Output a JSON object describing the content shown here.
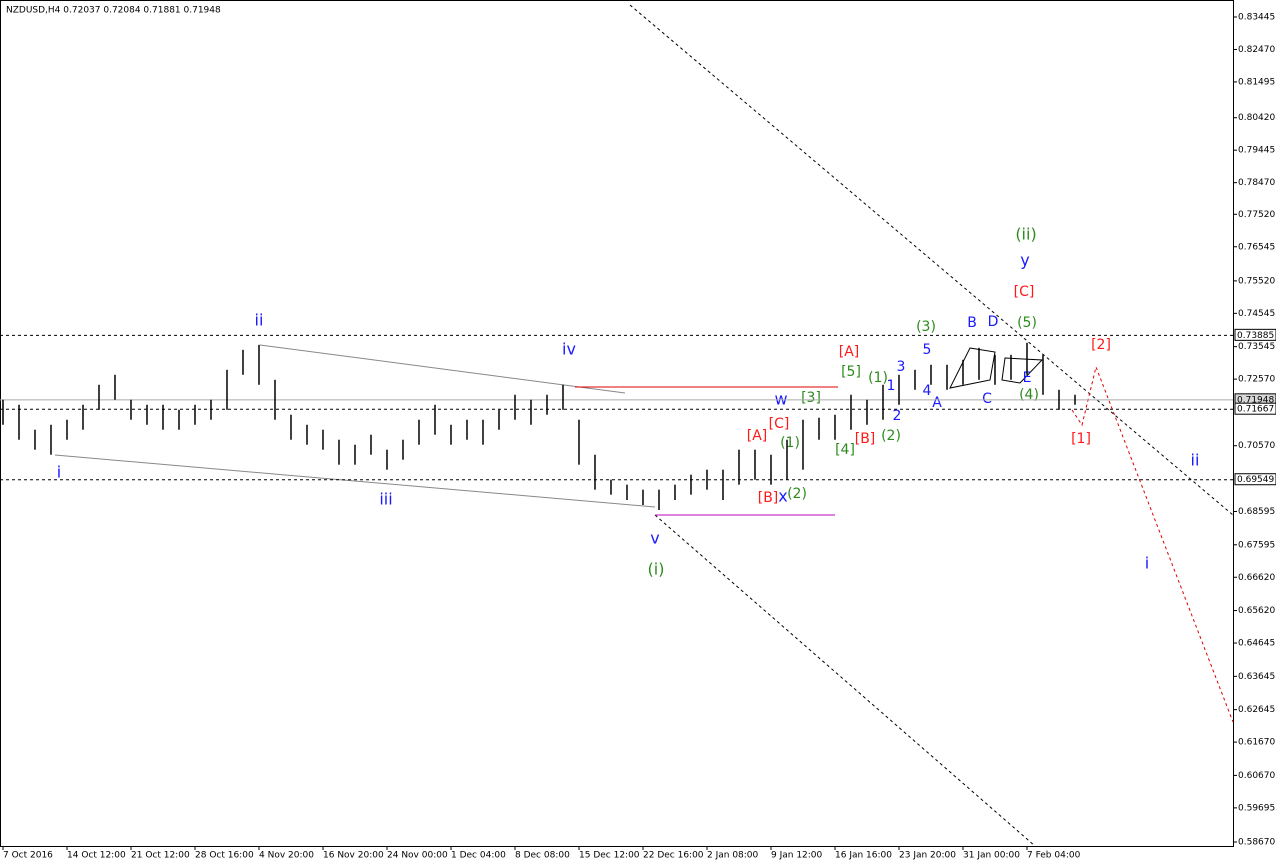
{
  "chart_data": {
    "type": "hl_bar",
    "title": "NZDUSD,H4  0.72037 0.72084 0.71881 0.71948",
    "color": "#000000",
    "ylim": [
      0.5855,
      0.83955
    ],
    "yticks": [
      {
        "value": 0.83445,
        "label": "0.83445"
      },
      {
        "value": 0.8247,
        "label": "0.82470"
      },
      {
        "value": 0.81495,
        "label": "0.81495"
      },
      {
        "value": 0.8042,
        "label": "0.80420"
      },
      {
        "value": 0.79445,
        "label": "0.79445"
      },
      {
        "value": 0.7847,
        "label": "0.78470"
      },
      {
        "value": 0.7752,
        "label": "0.77520"
      },
      {
        "value": 0.76545,
        "label": "0.76545"
      },
      {
        "value": 0.7552,
        "label": "0.75520"
      },
      {
        "value": 0.74545,
        "label": "0.74545"
      },
      {
        "value": 0.73545,
        "label": "0.73545"
      },
      {
        "value": 0.7257,
        "label": "0.72570"
      },
      {
        "value": 0.7057,
        "label": "0.70570"
      },
      {
        "value": 0.68595,
        "label": "0.68595"
      },
      {
        "value": 0.67595,
        "label": "0.67595"
      },
      {
        "value": 0.6662,
        "label": "0.66620"
      },
      {
        "value": 0.6562,
        "label": "0.65620"
      },
      {
        "value": 0.64645,
        "label": "0.64645"
      },
      {
        "value": 0.63645,
        "label": "0.63645"
      },
      {
        "value": 0.62645,
        "label": "0.62645"
      },
      {
        "value": 0.6167,
        "label": "0.61670"
      },
      {
        "value": 0.6067,
        "label": "0.60670"
      },
      {
        "value": 0.59695,
        "label": "0.59695"
      },
      {
        "value": 0.5867,
        "label": "0.58670"
      }
    ],
    "levels": [
      {
        "value": 0.73885,
        "label": "0.73885",
        "dashed": true
      },
      {
        "value": 0.71948,
        "label": "0.71948",
        "dashed": false
      },
      {
        "value": 0.71667,
        "label": "0.71667",
        "dashed": true
      },
      {
        "value": 0.69549,
        "label": "0.69549",
        "dashed": true
      }
    ],
    "categories": [
      "7 Oct 2016",
      null,
      null,
      null,
      "14 Oct 12:00",
      null,
      null,
      null,
      "21 Oct 12:00",
      null,
      null,
      null,
      "28 Oct 16:00",
      null,
      null,
      null,
      "4 Nov 20:00",
      null,
      null,
      null,
      "16 Nov 20:00",
      null,
      null,
      null,
      "24 Nov 00:00",
      null,
      null,
      null,
      "1 Dec 04:00",
      null,
      null,
      null,
      "8 Dec 08:00",
      null,
      null,
      null,
      "15 Dec 12:00",
      null,
      null,
      null,
      "22 Dec 16:00",
      null,
      null,
      null,
      "2 Jan 08:00",
      null,
      null,
      null,
      "9 Jan 12:00",
      null,
      null,
      null,
      "16 Jan 16:00",
      null,
      null,
      null,
      "23 Jan 20:00",
      null,
      null,
      null,
      "31 Jan 00:00",
      null,
      null,
      null,
      "7 Feb 04:00",
      null,
      null,
      null
    ],
    "high": [
      0.7195,
      0.718,
      0.7105,
      0.712,
      0.7135,
      0.718,
      0.724,
      0.727,
      0.7195,
      0.718,
      0.718,
      0.7165,
      0.718,
      0.7195,
      0.7285,
      0.7345,
      0.736,
      0.7255,
      0.715,
      0.712,
      0.7105,
      0.7075,
      0.706,
      0.709,
      0.7045,
      0.7075,
      0.7135,
      0.718,
      0.712,
      0.7135,
      0.7135,
      0.7165,
      0.721,
      0.7195,
      0.721,
      0.724,
      0.7135,
      0.703,
      0.6955,
      0.694,
      0.6925,
      0.6925,
      0.694,
      0.697,
      0.6985,
      0.6985,
      0.7045,
      0.7045,
      0.703,
      0.7075,
      0.7135,
      0.7141,
      0.715,
      0.721,
      0.7195,
      0.724,
      0.727,
      0.7285,
      0.73,
      0.73,
      0.7315,
      0.7351,
      0.733,
      0.733,
      0.7366,
      0.733,
      0.7225,
      0.721
    ],
    "low": [
      0.712,
      0.7075,
      0.7045,
      0.703,
      0.7075,
      0.7105,
      0.7165,
      0.7195,
      0.7135,
      0.712,
      0.7105,
      0.7105,
      0.712,
      0.7135,
      0.7165,
      0.727,
      0.724,
      0.7135,
      0.7075,
      0.706,
      0.7045,
      0.7,
      0.7,
      0.703,
      0.6985,
      0.7015,
      0.706,
      0.709,
      0.706,
      0.7075,
      0.706,
      0.7105,
      0.7135,
      0.712,
      0.715,
      0.7165,
      0.7,
      0.6925,
      0.691,
      0.6894,
      0.6879,
      0.6864,
      0.6894,
      0.691,
      0.6925,
      0.6894,
      0.694,
      0.6955,
      0.694,
      0.6955,
      0.6985,
      0.7075,
      0.7075,
      0.7105,
      0.712,
      0.7135,
      0.718,
      0.7225,
      0.724,
      0.7225,
      0.724,
      0.7255,
      0.724,
      0.7255,
      0.727,
      0.721,
      0.7165,
      0.718
    ],
    "annotations": [
      "i",
      "ii",
      "iii",
      "iv",
      "v",
      "w",
      "x",
      "y",
      "1",
      "2",
      "3",
      "4",
      "5",
      "A",
      "B",
      "C",
      "D",
      "E",
      "ii",
      "i",
      "(i)",
      "(ii)",
      "(1)",
      "(2)",
      "[3]",
      "[4]",
      "[5]",
      "(1)",
      "(2)",
      "(3)",
      "(4)",
      "(5)",
      "[A]",
      "[B]",
      "[C]",
      "[A]",
      "[B]",
      "[C]",
      "[1]",
      "[2]"
    ]
  }
}
